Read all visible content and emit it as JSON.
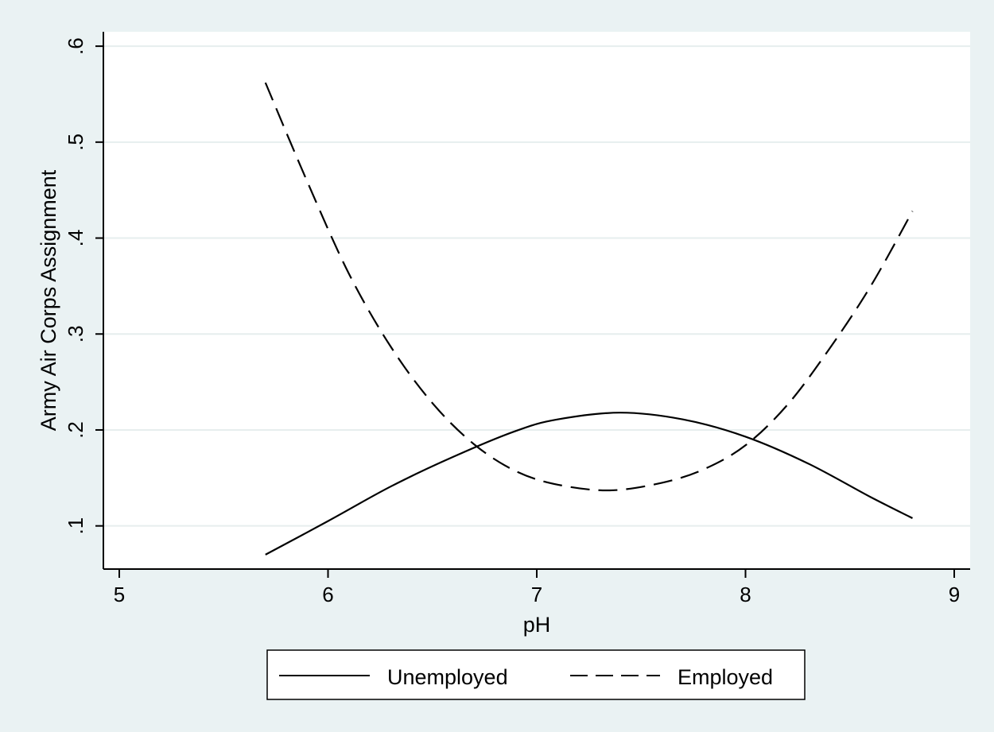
{
  "chart_data": {
    "type": "line",
    "xlabel": "pH",
    "ylabel": "Army Air Corps Assignment",
    "xlim": [
      5,
      9
    ],
    "ylim": [
      0.055,
      0.615
    ],
    "xticks": [
      5,
      6,
      7,
      8,
      9
    ],
    "xtick_labels": [
      "5",
      "6",
      "7",
      "8",
      "9"
    ],
    "yticks": [
      0.1,
      0.2,
      0.3,
      0.4,
      0.5,
      0.6
    ],
    "ytick_labels": [
      ".1",
      ".2",
      ".3",
      ".4",
      ".5",
      ".6"
    ],
    "grid": true,
    "legend_position": "bottom",
    "series": [
      {
        "name": "Unemployed",
        "style": "solid",
        "x": [
          5.7,
          6.0,
          6.3,
          6.6,
          6.9,
          7.1,
          7.4,
          7.7,
          8.0,
          8.3,
          8.6,
          8.8
        ],
        "y": [
          0.07,
          0.105,
          0.141,
          0.172,
          0.199,
          0.211,
          0.218,
          0.211,
          0.193,
          0.165,
          0.13,
          0.108
        ]
      },
      {
        "name": "Employed",
        "style": "dashed",
        "x": [
          5.7,
          5.9,
          6.1,
          6.3,
          6.5,
          6.7,
          6.9,
          7.1,
          7.35,
          7.6,
          7.8,
          8.0,
          8.2,
          8.4,
          8.6,
          8.8
        ],
        "y": [
          0.562,
          0.459,
          0.363,
          0.287,
          0.228,
          0.185,
          0.157,
          0.143,
          0.137,
          0.145,
          0.159,
          0.184,
          0.226,
          0.284,
          0.35,
          0.428
        ]
      }
    ]
  },
  "colors": {
    "background": "#eaf2f3",
    "plot_region": "#ffffff",
    "gridline": "#e6eeee",
    "line": "#000000"
  }
}
